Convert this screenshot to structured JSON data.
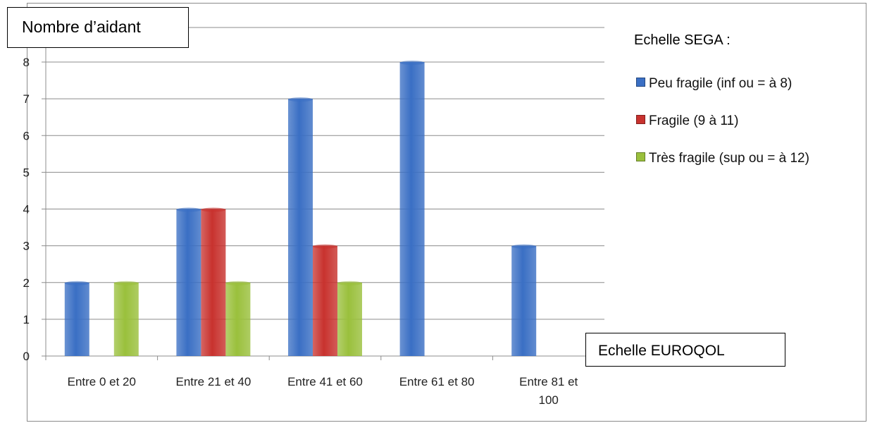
{
  "chart_data": {
    "type": "bar",
    "categories": [
      "Entre 0 et 20",
      "Entre 21 et 40",
      "Entre 41 et 60",
      "Entre 61 et 80",
      "Entre 81 et 100"
    ],
    "category_lines": [
      [
        "Entre 0 et 20"
      ],
      [
        "Entre 21 et 40"
      ],
      [
        "Entre 41 et 60"
      ],
      [
        "Entre 61 et 80"
      ],
      [
        "Entre 81 et",
        "100"
      ]
    ],
    "series": [
      {
        "name": "Peu fragile (inf ou = à 8)",
        "color": "#3a6fc4",
        "values": [
          2,
          4,
          7,
          8,
          3
        ]
      },
      {
        "name": "Fragile (9 à 11)",
        "color": "#c8322e",
        "values": [
          0,
          4,
          3,
          0,
          0
        ]
      },
      {
        "name": "Très fragile (sup ou = à 12)",
        "color": "#9ac03c",
        "values": [
          2,
          2,
          2,
          0,
          0
        ]
      }
    ],
    "ylabel": "Nombre d’aidant",
    "xlabel": "Echelle EUROQOL",
    "legend_title": "Echelle SEGA :",
    "yticks": [
      0,
      1,
      2,
      3,
      4,
      5,
      6,
      7,
      8
    ],
    "ylim": [
      0,
      8
    ],
    "grid": true,
    "legend_position": "right"
  }
}
